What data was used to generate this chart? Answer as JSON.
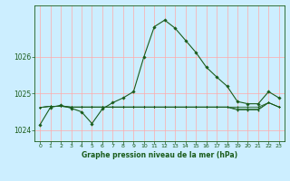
{
  "title": "Graphe pression niveau de la mer (hPa)",
  "bg_color": "#cceeff",
  "plot_bg_color": "#cceeff",
  "grid_color": "#ffaaaa",
  "line_color": "#1a5c1a",
  "xlim": [
    -0.5,
    23.5
  ],
  "ylim": [
    1023.7,
    1027.4
  ],
  "yticks": [
    1024,
    1025,
    1026
  ],
  "xticks": [
    0,
    1,
    2,
    3,
    4,
    5,
    6,
    7,
    8,
    9,
    10,
    11,
    12,
    13,
    14,
    15,
    16,
    17,
    18,
    19,
    20,
    21,
    22,
    23
  ],
  "series_main": [
    1024.15,
    1024.62,
    1024.68,
    1024.6,
    1024.5,
    1024.18,
    1024.58,
    1024.75,
    1024.88,
    1025.05,
    1026.0,
    1026.82,
    1027.0,
    1026.78,
    1026.45,
    1026.12,
    1025.72,
    1025.45,
    1025.2,
    1024.78,
    1024.72,
    1024.72,
    1025.05,
    1024.88
  ],
  "series_flat1": [
    1024.62,
    1024.65,
    1024.65,
    1024.63,
    1024.63,
    1024.63,
    1024.63,
    1024.63,
    1024.63,
    1024.63,
    1024.63,
    1024.63,
    1024.63,
    1024.63,
    1024.63,
    1024.63,
    1024.63,
    1024.63,
    1024.63,
    1024.63,
    1024.63,
    1024.63,
    1024.75,
    1024.63
  ],
  "series_flat2": [
    1024.62,
    1024.65,
    1024.65,
    1024.63,
    1024.63,
    1024.63,
    1024.63,
    1024.63,
    1024.63,
    1024.63,
    1024.63,
    1024.63,
    1024.63,
    1024.63,
    1024.63,
    1024.63,
    1024.63,
    1024.63,
    1024.63,
    1024.58,
    1024.58,
    1024.58,
    1024.75,
    1024.63
  ],
  "series_flat3": [
    1024.62,
    1024.65,
    1024.65,
    1024.63,
    1024.63,
    1024.63,
    1024.63,
    1024.63,
    1024.63,
    1024.63,
    1024.63,
    1024.63,
    1024.63,
    1024.63,
    1024.63,
    1024.63,
    1024.63,
    1024.63,
    1024.63,
    1024.55,
    1024.55,
    1024.55,
    1024.75,
    1024.63
  ]
}
